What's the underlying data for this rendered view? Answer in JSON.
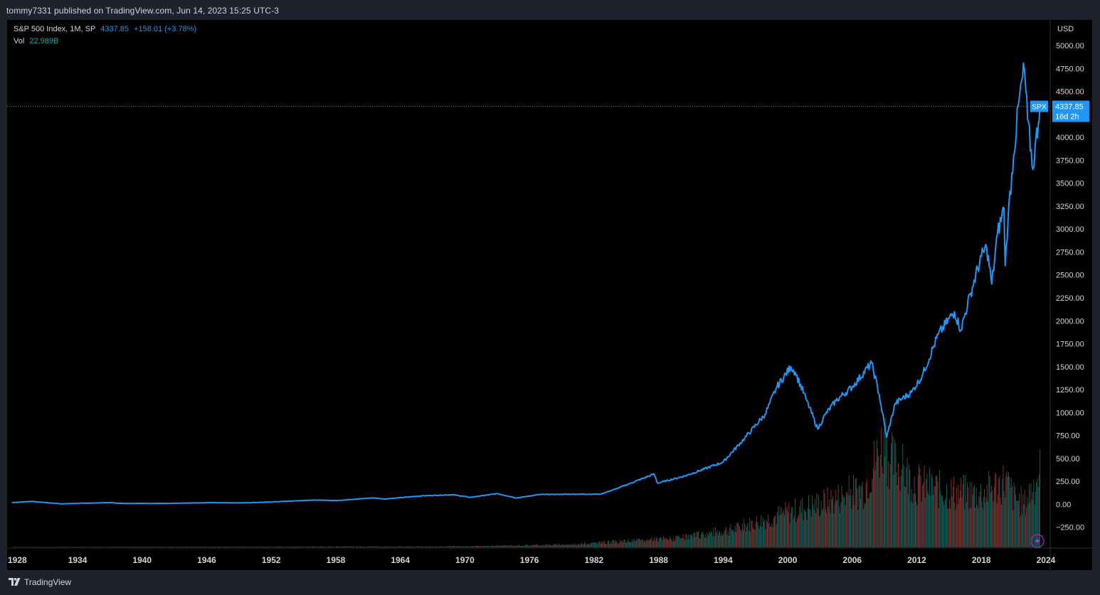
{
  "header": {
    "publish_text": "tommy7331 published on TradingView.com, Jun 14, 2023 15:25 UTC-3"
  },
  "legend": {
    "symbol_label": "S&P 500 Index, 1M, SP",
    "price": "4337.85",
    "change": "+158.01 (+3.78%)",
    "vol_label": "Vol",
    "vol_value": "22.989B"
  },
  "price_axis": {
    "currency": "USD",
    "ticks": [
      "5000.00",
      "4750.00",
      "4500.00",
      "4000.00",
      "3750.00",
      "3500.00",
      "3250.00",
      "3000.00",
      "2750.00",
      "2500.00",
      "2250.00",
      "2000.00",
      "1750.00",
      "1500.00",
      "1250.00",
      "1000.00",
      "750.00",
      "500.00",
      "250.00",
      "0.00",
      "−250.00"
    ],
    "symbol_tag": "SPX",
    "current_price": "4337.85",
    "countdown": "16d 2h"
  },
  "time_axis": {
    "ticks": [
      "1928",
      "1934",
      "1940",
      "1946",
      "1952",
      "1958",
      "1964",
      "1970",
      "1976",
      "1982",
      "1988",
      "1994",
      "2000",
      "2006",
      "2012",
      "2018",
      "2024"
    ]
  },
  "footer": {
    "brand": "TradingView"
  },
  "colors": {
    "line": "#2196f3",
    "vol_up": "#26a69a",
    "vol_down": "#ef5350",
    "background": "#000000",
    "frame": "#1e222d",
    "text": "#d1d4dc"
  },
  "chart_data": {
    "type": "line",
    "title": "S&P 500 Index, 1M, SP",
    "series": [
      {
        "name": "S&P 500 Index",
        "x": [
          1927.9,
          1929.7,
          1932.5,
          1937.0,
          1938.0,
          1942.3,
          1946.4,
          1949.5,
          1952.0,
          1956.0,
          1958.0,
          1961.5,
          1962.5,
          1966.0,
          1968.9,
          1970.5,
          1973.0,
          1974.8,
          1976.9,
          1980.0,
          1982.6,
          1984.0,
          1987.6,
          1987.9,
          1990.5,
          1994.0,
          1996.0,
          1997.9,
          1999.0,
          2000.3,
          2000.7,
          2001.7,
          2002.8,
          2003.5,
          2004.5,
          2006.0,
          2007.8,
          2008.5,
          2009.2,
          2010.0,
          2011.5,
          2012.5,
          2014.0,
          2015.5,
          2016.1,
          2017.0,
          2018.0,
          2018.5,
          2018.97,
          2019.5,
          2020.1,
          2020.22,
          2020.5,
          2021.0,
          2021.5,
          2022.0,
          2022.3,
          2022.8,
          2023.0,
          2023.3,
          2023.45
        ],
        "y": [
          18,
          31,
          5,
          18,
          10,
          9,
          18,
          15,
          25,
          46,
          40,
          70,
          57,
          92,
          104,
          75,
          116,
          68,
          106,
          110,
          110,
          165,
          330,
          230,
          310,
          460,
          720,
          980,
          1280,
          1500,
          1440,
          1150,
          820,
          980,
          1130,
          1280,
          1540,
          1200,
          730,
          1100,
          1220,
          1400,
          1850,
          2100,
          1900,
          2300,
          2700,
          2800,
          2400,
          2950,
          3230,
          2600,
          3150,
          3800,
          4400,
          4750,
          4200,
          3650,
          3900,
          4150,
          4337.85
        ]
      },
      {
        "name": "Vol",
        "x": [
          1928,
          1970,
          1980,
          1990,
          1995,
          2000,
          2004,
          2007,
          2008.8,
          2009.3,
          2012,
          2015,
          2018,
          2020.2,
          2021,
          2022,
          2023.45
        ],
        "y": [
          0.1,
          0.3,
          0.9,
          2.8,
          5.5,
          10.5,
          14.0,
          17.5,
          31.0,
          27.0,
          19.0,
          16.5,
          16.0,
          20.0,
          15.0,
          13.0,
          22.989
        ]
      }
    ],
    "xlim": [
      1927.45,
      2024.4
    ],
    "ylim": [
      -470,
      5280
    ],
    "ylabel": "USD",
    "x_ticks": [
      1928,
      1934,
      1940,
      1946,
      1952,
      1958,
      1964,
      1970,
      1976,
      1982,
      1988,
      1994,
      2000,
      2006,
      2012,
      2018,
      2024
    ],
    "y_ticks": [
      5000,
      4750,
      4500,
      4000,
      3750,
      3500,
      3250,
      3000,
      2750,
      2500,
      2250,
      2000,
      1750,
      1500,
      1250,
      1000,
      750,
      500,
      250,
      0,
      -250
    ],
    "last_value": 4337.85,
    "grid": false
  }
}
